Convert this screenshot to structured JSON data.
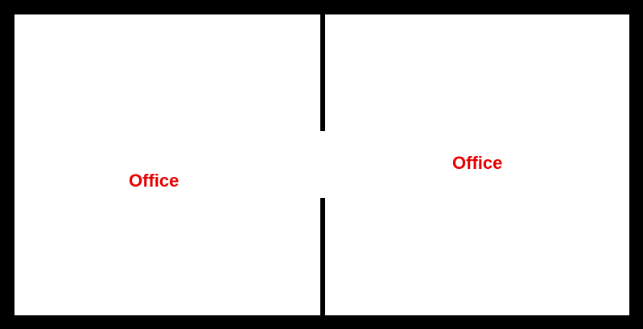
{
  "colors": {
    "wall": "#000000",
    "room_fill": "#ffffff",
    "label": "#e60000"
  },
  "rooms": [
    {
      "label": "Office"
    },
    {
      "label": "Office"
    }
  ]
}
